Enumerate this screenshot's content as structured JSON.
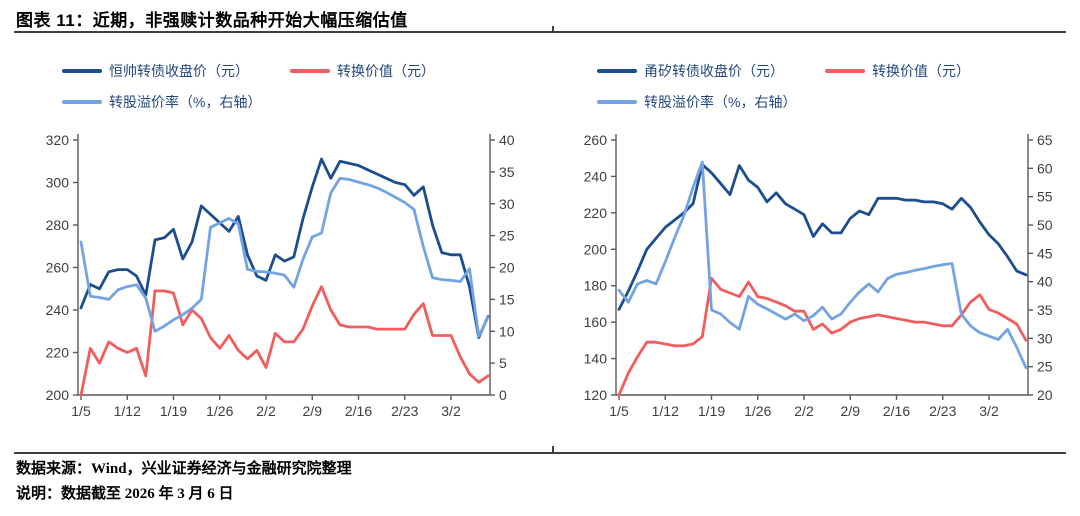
{
  "title": "图表 11：近期，非强赎计数品种开始大幅压缩估值",
  "footer": {
    "source": "数据来源：Wind，兴业证券经济与金融研究院整理",
    "note": "说明：数据截至 2026 年 3 月 6 日"
  },
  "colors": {
    "dark_blue": "#1b4e8f",
    "light_blue": "#74a3e3",
    "red": "#f15d5d",
    "axis": "#595959",
    "tick_text": "#3f3f3f",
    "legend_text": "#24477e",
    "rule": "#3f3f3f"
  },
  "chart_data": [
    {
      "type": "line",
      "x_ticks": [
        "1/5",
        "1/12",
        "1/19",
        "1/26",
        "2/2",
        "2/9",
        "2/16",
        "2/23",
        "3/2"
      ],
      "left_axis": {
        "min": 200,
        "max": 320,
        "ticks": [
          "200",
          "220",
          "240",
          "260",
          "280",
          "300",
          "320"
        ]
      },
      "right_axis": {
        "min": 0,
        "max": 40,
        "ticks": [
          "0",
          "5",
          "10",
          "15",
          "20",
          "25",
          "30",
          "35",
          "40"
        ]
      },
      "legend": [
        {
          "label": "恒帅转债收盘价（元）",
          "color": "dark_blue"
        },
        {
          "label": "转换价值（元）",
          "color": "red"
        },
        {
          "label": "转股溢价率（%，右轴）",
          "color": "light_blue"
        }
      ],
      "series": [
        {
          "name": "恒帅转债收盘价（元）",
          "axis": "left",
          "color": "dark_blue",
          "values": [
            241,
            252,
            250,
            258,
            259,
            259,
            256,
            247,
            273,
            274,
            278,
            264,
            272,
            289,
            285,
            281,
            277,
            284,
            266,
            256,
            254,
            266,
            263,
            265,
            283,
            298,
            311,
            302,
            310,
            309,
            308,
            306,
            304,
            302,
            300,
            299,
            294,
            298,
            280,
            267,
            266,
            266,
            251,
            227,
            237
          ]
        },
        {
          "name": "转换价值（元）",
          "axis": "left",
          "color": "red",
          "values": [
            200,
            222,
            215,
            225,
            222,
            220,
            222,
            209,
            249,
            249,
            248,
            233,
            240,
            236,
            227,
            222,
            228,
            221,
            217,
            221,
            213,
            229,
            225,
            225,
            231,
            242,
            251,
            240,
            233,
            232,
            232,
            232,
            231,
            231,
            231,
            231,
            238,
            243,
            228,
            228,
            228,
            218,
            210,
            206,
            209
          ]
        },
        {
          "name": "转股溢价率（%，右轴）",
          "axis": "right",
          "color": "light_blue",
          "values": [
            24,
            15.5,
            15.3,
            15,
            16.5,
            17,
            17.3,
            15.2,
            10,
            10.8,
            11.8,
            12.6,
            13.6,
            15,
            26.3,
            27,
            27.7,
            26.8,
            19.7,
            19.4,
            19.3,
            19.1,
            18.8,
            16.9,
            21.3,
            24.8,
            25.4,
            31.7,
            34,
            33.8,
            33.4,
            33,
            32.5,
            31.8,
            31,
            30.2,
            29.1,
            23.3,
            18.4,
            18.1,
            18,
            17.8,
            19.8,
            9.2,
            12.2
          ]
        }
      ]
    },
    {
      "type": "line",
      "x_ticks": [
        "1/5",
        "1/12",
        "1/19",
        "1/26",
        "2/2",
        "2/9",
        "2/16",
        "2/23",
        "3/2"
      ],
      "left_axis": {
        "min": 120,
        "max": 260,
        "ticks": [
          "120",
          "140",
          "160",
          "180",
          "200",
          "220",
          "240",
          "260"
        ]
      },
      "right_axis": {
        "min": 20,
        "max": 65,
        "ticks": [
          "20",
          "25",
          "30",
          "35",
          "40",
          "45",
          "50",
          "55",
          "60",
          "65"
        ]
      },
      "legend": [
        {
          "label": "甬矽转债收盘价（元）",
          "color": "dark_blue"
        },
        {
          "label": "转换价值（元）",
          "color": "red"
        },
        {
          "label": "转股溢价率（%，右轴）",
          "color": "light_blue"
        }
      ],
      "series": [
        {
          "name": "甬矽转债收盘价（元）",
          "axis": "left",
          "color": "dark_blue",
          "values": [
            167,
            177,
            188,
            200,
            206,
            212,
            216,
            220,
            225,
            246.5,
            242,
            236,
            230,
            246,
            238,
            234,
            226,
            231,
            225,
            222,
            219,
            207,
            214,
            209,
            209,
            217,
            221,
            219,
            228,
            228,
            228,
            227,
            227,
            226,
            226,
            225,
            222,
            228,
            223,
            215,
            208,
            203,
            196,
            188,
            186
          ]
        },
        {
          "name": "转换价值（元）",
          "axis": "left",
          "color": "red",
          "values": [
            120,
            132,
            141,
            149,
            149,
            148,
            147,
            147,
            148,
            152,
            184,
            178,
            176,
            174,
            182,
            174,
            173,
            171,
            169,
            166,
            166,
            156,
            159,
            154,
            156,
            160,
            162,
            163,
            164,
            163,
            162,
            161,
            160,
            160,
            159,
            158,
            158,
            164,
            171,
            175,
            167,
            165,
            162,
            159,
            150
          ]
        },
        {
          "name": "转股溢价率（%，右轴）",
          "axis": "right",
          "color": "light_blue",
          "values": [
            38.5,
            36.4,
            39.6,
            40.2,
            39.6,
            43.5,
            47.7,
            51.6,
            56.6,
            61.1,
            35,
            34.3,
            32.8,
            31.6,
            37.4,
            36,
            35.2,
            34.3,
            33.4,
            34.3,
            33.1,
            34,
            35.5,
            33.4,
            34.3,
            36.4,
            38.2,
            39.6,
            38.2,
            40.5,
            41.3,
            41.6,
            42,
            42.3,
            42.7,
            43,
            43.2,
            34.3,
            32.2,
            31,
            30.4,
            29.8,
            31.6,
            28.4,
            24.8
          ]
        }
      ]
    }
  ]
}
